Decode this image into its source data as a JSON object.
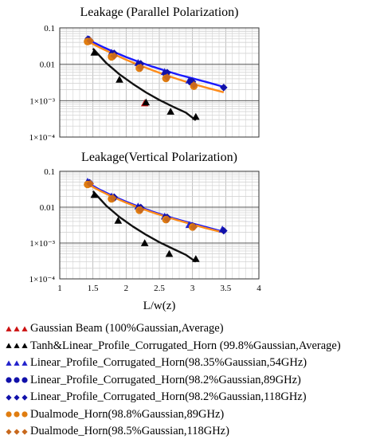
{
  "chart_data": [
    {
      "type": "scatter",
      "title": "Leakage (Parallel Polarization)",
      "xlabel": "",
      "ylabel": "",
      "xlim": [
        1,
        4
      ],
      "ylim": [
        0.0001,
        0.1
      ],
      "yscale": "log",
      "grid": true,
      "yticks": [
        "0.1",
        "0.01",
        "1×10⁻³",
        "1×10⁻⁴"
      ],
      "xticks": [],
      "series": [
        {
          "name": "Gaussian Beam (100%Gaussian,Average)",
          "color": "#cc1111",
          "marker": "triangle",
          "x": [
            2.28
          ],
          "y": [
            0.00085
          ]
        },
        {
          "name": "Tanh&Linear_Profile_Corrugated_Horn (99.8%Gaussian,Average)",
          "color": "#000000",
          "marker": "triangle",
          "x": [
            1.52,
            1.9,
            2.3,
            2.67,
            3.05
          ],
          "y": [
            0.021,
            0.0038,
            0.0009,
            0.0005,
            0.00036
          ]
        },
        {
          "name": "Linear_Profile_Corrugated_Horn(98.35%Gaussian,54GHz)",
          "color": "#2222cc",
          "marker": "triangle",
          "x": [
            1.42,
            1.78,
            2.18,
            2.58,
            2.95
          ],
          "y": [
            0.05,
            0.021,
            0.011,
            0.0062,
            0.0036
          ]
        },
        {
          "name": "Linear_Profile_Corrugated_Horn(98.2%Gaussian,89GHz)",
          "color": "#1111aa",
          "marker": "circle",
          "x": [
            1.43,
            1.8,
            2.2,
            2.6,
            2.98
          ],
          "y": [
            0.046,
            0.019,
            0.0098,
            0.0056,
            0.0033
          ]
        },
        {
          "name": "Linear_Profile_Corrugated_Horn(98.2%Gaussian,118GHz)",
          "color": "#1111aa",
          "marker": "diamond",
          "x": [
            1.44,
            1.82,
            2.22,
            2.62,
            3.0,
            3.47
          ],
          "y": [
            0.048,
            0.02,
            0.0103,
            0.0059,
            0.0033,
            0.0023
          ]
        },
        {
          "name": "Dualmode_Horn(98.8%Gaussian,89GHz)",
          "color": "#e07d10",
          "marker": "circle",
          "x": [
            1.42,
            1.78,
            2.2,
            2.6,
            3.02
          ],
          "y": [
            0.042,
            0.016,
            0.0078,
            0.0041,
            0.0025
          ]
        },
        {
          "name": "Dualmode_Horn(98.5%Gaussian,118GHz)",
          "color": "#c8691e",
          "marker": "diamond",
          "x": [
            1.46,
            1.82,
            2.22,
            2.62,
            3.02
          ],
          "y": [
            0.044,
            0.017,
            0.0082,
            0.0044,
            0.0027
          ]
        }
      ],
      "fit_curves": [
        {
          "color": "#1a1aff",
          "x": [
            1.4,
            1.6,
            1.8,
            2.0,
            2.2,
            2.4,
            2.6,
            2.8,
            3.0,
            3.2,
            3.47
          ],
          "y": [
            0.05,
            0.033,
            0.0225,
            0.0158,
            0.0115,
            0.0086,
            0.0066,
            0.0051,
            0.0041,
            0.0033,
            0.0024
          ]
        },
        {
          "color": "#ff8c1a",
          "x": [
            1.4,
            1.6,
            1.8,
            2.0,
            2.2,
            2.4,
            2.6,
            2.8,
            3.0,
            3.2,
            3.47
          ],
          "y": [
            0.045,
            0.029,
            0.0195,
            0.0133,
            0.0094,
            0.0068,
            0.005,
            0.0038,
            0.0029,
            0.0023,
            0.0017
          ]
        },
        {
          "color": "#111111",
          "x": [
            1.5,
            1.7,
            1.9,
            2.1,
            2.3,
            2.5,
            2.7,
            2.9,
            3.05
          ],
          "y": [
            0.027,
            0.0109,
            0.0053,
            0.0029,
            0.00168,
            0.00105,
            0.00069,
            0.00047,
            0.00029
          ]
        }
      ]
    },
    {
      "type": "scatter",
      "title": "Leakage(Vertical Polarization)",
      "xlabel": "L/w(z)",
      "ylabel": "",
      "xlim": [
        1,
        4
      ],
      "ylim": [
        0.0001,
        0.1
      ],
      "yscale": "log",
      "grid": true,
      "yticks": [
        "0.1",
        "0.01",
        "1×10⁻³",
        "1×10⁻⁴"
      ],
      "xticks": [
        "1",
        "1.5",
        "2",
        "2.5",
        "3",
        "3.5",
        "4"
      ],
      "series": [
        {
          "name": "Tanh&Linear_Profile_Corrugated_Horn (99.8%Gaussian,Average)",
          "color": "#000000",
          "marker": "triangle",
          "x": [
            1.52,
            1.88,
            2.28,
            2.65,
            3.05
          ],
          "y": [
            0.022,
            0.0042,
            0.001,
            0.0005,
            0.00036
          ]
        },
        {
          "name": "Linear_Profile_Corrugated_Horn(98.35%Gaussian,54GHz)",
          "color": "#2222cc",
          "marker": "triangle",
          "x": [
            1.42,
            1.78,
            2.18,
            2.58,
            2.95,
            3.45
          ],
          "y": [
            0.052,
            0.02,
            0.0105,
            0.0055,
            0.0032,
            0.0024
          ]
        },
        {
          "name": "Linear_Profile_Corrugated_Horn(98.2%Gaussian,89GHz)",
          "color": "#1111aa",
          "marker": "circle",
          "x": [
            1.44,
            1.8,
            2.2,
            2.6,
            3.0
          ],
          "y": [
            0.046,
            0.018,
            0.0092,
            0.005,
            0.0029
          ]
        },
        {
          "name": "Linear_Profile_Corrugated_Horn(98.2%Gaussian,118GHz)",
          "color": "#1111aa",
          "marker": "diamond",
          "x": [
            1.45,
            1.82,
            2.22,
            2.62,
            3.0,
            3.47
          ],
          "y": [
            0.048,
            0.019,
            0.0098,
            0.0052,
            0.003,
            0.0022
          ]
        },
        {
          "name": "Dualmode_Horn(98.8%Gaussian,89GHz)",
          "color": "#e07d10",
          "marker": "circle",
          "x": [
            1.42,
            1.78,
            2.2,
            2.6,
            3.0
          ],
          "y": [
            0.043,
            0.017,
            0.0082,
            0.0045,
            0.0028
          ]
        },
        {
          "name": "Dualmode_Horn(98.5%Gaussian,118GHz)",
          "color": "#c8691e",
          "marker": "diamond",
          "x": [
            1.46,
            1.8,
            2.22,
            2.62,
            3.02
          ],
          "y": [
            0.045,
            0.018,
            0.0085,
            0.0046,
            0.0028
          ]
        }
      ],
      "fit_curves": [
        {
          "color": "#1a1aff",
          "x": [
            1.4,
            1.6,
            1.8,
            2.0,
            2.2,
            2.4,
            2.6,
            2.8,
            3.0,
            3.2,
            3.45
          ],
          "y": [
            0.05,
            0.031,
            0.0205,
            0.0142,
            0.0102,
            0.0075,
            0.0057,
            0.0044,
            0.0035,
            0.0028,
            0.0021
          ]
        },
        {
          "color": "#ff8c1a",
          "x": [
            1.4,
            1.6,
            1.8,
            2.0,
            2.2,
            2.4,
            2.6,
            2.8,
            3.0,
            3.2,
            3.45
          ],
          "y": [
            0.046,
            0.029,
            0.0192,
            0.0133,
            0.0096,
            0.0071,
            0.0054,
            0.0042,
            0.0033,
            0.0026,
            0.002
          ]
        },
        {
          "color": "#111111",
          "x": [
            1.5,
            1.7,
            1.9,
            2.1,
            2.3,
            2.5,
            2.7,
            2.9,
            3.05
          ],
          "y": [
            0.028,
            0.011,
            0.0053,
            0.0029,
            0.0017,
            0.00106,
            0.0007,
            0.00047,
            0.0003
          ]
        }
      ]
    }
  ],
  "legend": {
    "items": [
      {
        "label": "Gaussian Beam (100%Gaussian,Average)",
        "color": "#cc1111",
        "marker": "triangle"
      },
      {
        "label": "Tanh&Linear_Profile_Corrugated_Horn (99.8%Gaussian,Average)",
        "color": "#000000",
        "marker": "triangle"
      },
      {
        "label": "Linear_Profile_Corrugated_Horn(98.35%Gaussian,54GHz)",
        "color": "#2222cc",
        "marker": "triangle"
      },
      {
        "label": "Linear_Profile_Corrugated_Horn(98.2%Gaussian,89GHz)",
        "color": "#1111aa",
        "marker": "circle"
      },
      {
        "label": "Linear_Profile_Corrugated_Horn(98.2%Gaussian,118GHz)",
        "color": "#1111aa",
        "marker": "diamond"
      },
      {
        "label": "Dualmode_Horn(98.8%Gaussian,89GHz)",
        "color": "#e07d10",
        "marker": "circle"
      },
      {
        "label": "Dualmode_Horn(98.5%Gaussian,118GHz)",
        "color": "#c8691e",
        "marker": "diamond"
      }
    ]
  }
}
